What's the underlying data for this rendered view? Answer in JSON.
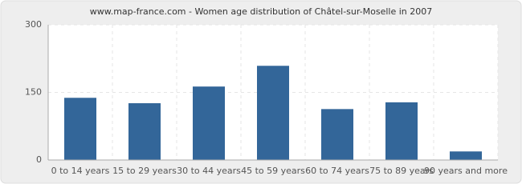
{
  "chart_data": {
    "type": "bar",
    "title": "www.map-france.com - Women age distribution of Châtel-sur-Moselle in 2007",
    "categories": [
      "0 to 14 years",
      "15 to 29 years",
      "30 to 44 years",
      "45 to 59 years",
      "60 to 74 years",
      "75 to 89 years",
      "90 years and more"
    ],
    "values": [
      138,
      126,
      163,
      209,
      113,
      128,
      19
    ],
    "color": "#336699",
    "ylim": [
      0,
      300
    ],
    "yticks": [
      0,
      150,
      300
    ],
    "grid": true
  }
}
